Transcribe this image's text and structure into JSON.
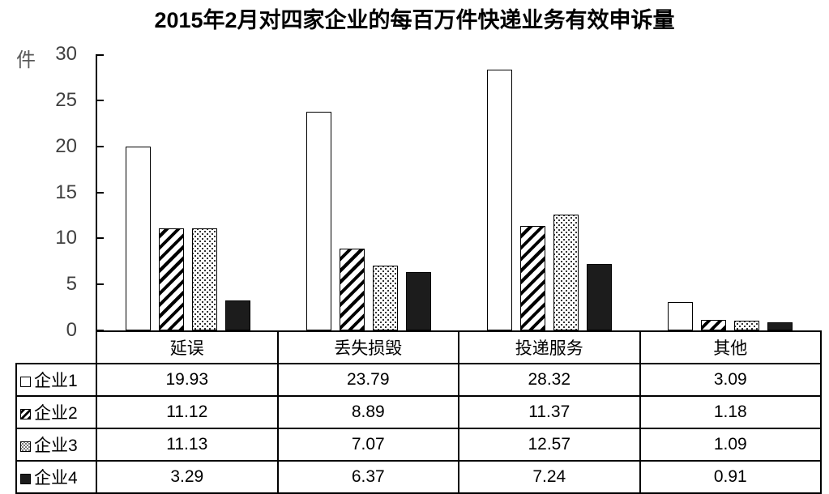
{
  "chart_data": {
    "type": "bar",
    "title": "2015年2月对四家企业的每百万件快递业务有效申诉量",
    "unit_label": "件",
    "categories": [
      "延误",
      "丢失损毁",
      "投递服务",
      "其他"
    ],
    "series": [
      {
        "name": "企业1",
        "pattern": "white",
        "values": [
          19.93,
          23.79,
          28.32,
          3.09
        ]
      },
      {
        "name": "企业2",
        "pattern": "diagonal-hatch",
        "values": [
          11.12,
          8.89,
          11.37,
          1.18
        ]
      },
      {
        "name": "企业3",
        "pattern": "dotted",
        "values": [
          11.13,
          7.07,
          12.57,
          1.09
        ]
      },
      {
        "name": "企业4",
        "pattern": "solid-black",
        "values": [
          3.29,
          6.37,
          7.24,
          0.91
        ]
      }
    ],
    "yticks": [
      0,
      5,
      10,
      15,
      20,
      25,
      30
    ],
    "ylim": [
      0,
      30
    ],
    "grid": false,
    "legend_position": "table-rows-left",
    "value_format": "2-decimals"
  },
  "colors": {
    "background": "#ffffff",
    "axis_line": "#000000",
    "tick_label": "#404040",
    "unit_label": "#595959",
    "title_text": "#000000",
    "solid_bar": "#1c1c1c"
  }
}
